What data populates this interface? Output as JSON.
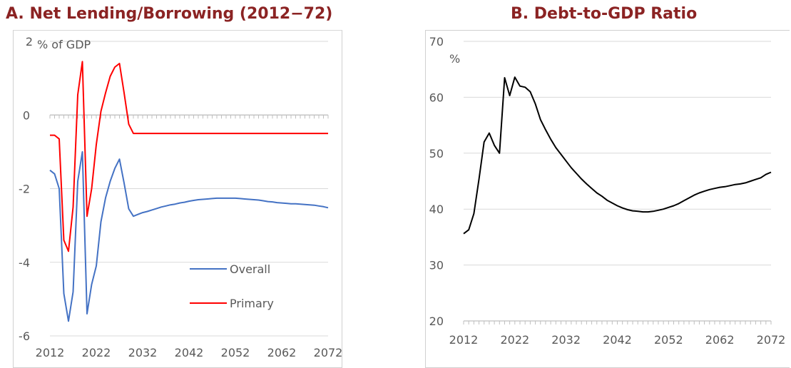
{
  "titles": {
    "a": "A. Net Lending/Borrowing (2012−72)",
    "b": "B. Debt-to-GDP Ratio"
  },
  "colors": {
    "title": "#8B2323",
    "overall": "#4472C4",
    "primary": "#FF0000",
    "debt": "#000000",
    "grid": "#d9d9d9",
    "axis": "#bfbfbf",
    "text": "#595959"
  },
  "chart_data": [
    {
      "type": "line",
      "title": "A. Net Lending/Borrowing (2012−72)",
      "ylabel": "% of GDP",
      "xlabel": "",
      "xlim": [
        2012,
        2072
      ],
      "ylim": [
        -6,
        2
      ],
      "x_ticks": [
        "2012",
        "2022",
        "2032",
        "2042",
        "2052",
        "2062",
        "2072"
      ],
      "y_ticks": [
        "2",
        "0",
        "-2",
        "-4",
        "-6"
      ],
      "grid": true,
      "legend_position": "lower-right",
      "series": [
        {
          "name": "Overall",
          "color": "#4472C4",
          "x": [
            2012,
            2013,
            2014,
            2015,
            2016,
            2017,
            2018,
            2019,
            2020,
            2021,
            2022,
            2023,
            2024,
            2025,
            2026,
            2027,
            2028,
            2029,
            2030,
            2031,
            2032,
            2033,
            2034,
            2035,
            2036,
            2037,
            2038,
            2039,
            2040,
            2041,
            2042,
            2043,
            2044,
            2045,
            2046,
            2047,
            2048,
            2049,
            2050,
            2051,
            2052,
            2053,
            2054,
            2055,
            2056,
            2057,
            2058,
            2059,
            2060,
            2061,
            2062,
            2063,
            2064,
            2065,
            2066,
            2067,
            2068,
            2069,
            2070,
            2071,
            2072
          ],
          "values": [
            -1.5,
            -1.6,
            -2.0,
            -4.85,
            -5.6,
            -4.8,
            -1.8,
            -1.0,
            -5.4,
            -4.6,
            -4.1,
            -2.9,
            -2.25,
            -1.8,
            -1.45,
            -1.2,
            -1.85,
            -2.55,
            -2.75,
            -2.7,
            -2.65,
            -2.62,
            -2.58,
            -2.54,
            -2.5,
            -2.47,
            -2.44,
            -2.42,
            -2.39,
            -2.37,
            -2.34,
            -2.32,
            -2.3,
            -2.29,
            -2.28,
            -2.27,
            -2.26,
            -2.26,
            -2.26,
            -2.26,
            -2.26,
            -2.27,
            -2.28,
            -2.29,
            -2.3,
            -2.31,
            -2.33,
            -2.35,
            -2.36,
            -2.38,
            -2.39,
            -2.4,
            -2.41,
            -2.41,
            -2.42,
            -2.43,
            -2.44,
            -2.45,
            -2.47,
            -2.49,
            -2.52
          ]
        },
        {
          "name": "Primary",
          "color": "#FF0000",
          "x": [
            2012,
            2013,
            2014,
            2015,
            2016,
            2017,
            2018,
            2019,
            2020,
            2021,
            2022,
            2023,
            2024,
            2025,
            2026,
            2027,
            2028,
            2029,
            2030,
            2031,
            2032,
            2033,
            2034,
            2035,
            2036,
            2037,
            2038,
            2039,
            2040,
            2041,
            2042,
            2043,
            2044,
            2045,
            2046,
            2047,
            2048,
            2049,
            2050,
            2051,
            2052,
            2053,
            2054,
            2055,
            2056,
            2057,
            2058,
            2059,
            2060,
            2061,
            2062,
            2063,
            2064,
            2065,
            2066,
            2067,
            2068,
            2069,
            2070,
            2071,
            2072
          ],
          "values": [
            -0.55,
            -0.55,
            -0.65,
            -3.4,
            -3.7,
            -2.5,
            0.55,
            1.45,
            -2.75,
            -2.0,
            -0.8,
            0.1,
            0.6,
            1.05,
            1.3,
            1.4,
            0.6,
            -0.25,
            -0.5,
            -0.5,
            -0.5,
            -0.5,
            -0.5,
            -0.5,
            -0.5,
            -0.5,
            -0.5,
            -0.5,
            -0.5,
            -0.5,
            -0.5,
            -0.5,
            -0.5,
            -0.5,
            -0.5,
            -0.5,
            -0.5,
            -0.5,
            -0.5,
            -0.5,
            -0.5,
            -0.5,
            -0.5,
            -0.5,
            -0.5,
            -0.5,
            -0.5,
            -0.5,
            -0.5,
            -0.5,
            -0.5,
            -0.5,
            -0.5,
            -0.5,
            -0.5,
            -0.5,
            -0.5,
            -0.5,
            -0.5,
            -0.5,
            -0.5
          ]
        }
      ]
    },
    {
      "type": "line",
      "title": "B. Debt-to-GDP Ratio",
      "ylabel": "%",
      "xlabel": "",
      "xlim": [
        2012,
        2072
      ],
      "ylim": [
        20,
        70
      ],
      "x_ticks": [
        "2012",
        "2022",
        "2032",
        "2042",
        "2052",
        "2062",
        "2072"
      ],
      "y_ticks": [
        "70",
        "60",
        "50",
        "40",
        "30",
        "20"
      ],
      "grid": true,
      "series": [
        {
          "color": "#000000",
          "x": [
            2012,
            2013,
            2014,
            2015,
            2016,
            2017,
            2018,
            2019,
            2020,
            2021,
            2022,
            2023,
            2024,
            2025,
            2026,
            2027,
            2028,
            2029,
            2030,
            2031,
            2032,
            2033,
            2034,
            2035,
            2036,
            2037,
            2038,
            2039,
            2040,
            2041,
            2042,
            2043,
            2044,
            2045,
            2046,
            2047,
            2048,
            2049,
            2050,
            2051,
            2052,
            2053,
            2054,
            2055,
            2056,
            2057,
            2058,
            2059,
            2060,
            2061,
            2062,
            2063,
            2064,
            2065,
            2066,
            2067,
            2068,
            2069,
            2070,
            2071,
            2072
          ],
          "values": [
            35.6,
            36.3,
            39.2,
            45.3,
            52.0,
            53.6,
            51.4,
            50.0,
            63.5,
            60.3,
            63.6,
            62.0,
            61.8,
            61.0,
            58.8,
            56.0,
            54.2,
            52.5,
            51.0,
            49.8,
            48.6,
            47.4,
            46.4,
            45.4,
            44.5,
            43.7,
            42.9,
            42.3,
            41.6,
            41.1,
            40.6,
            40.2,
            39.9,
            39.7,
            39.6,
            39.5,
            39.5,
            39.6,
            39.8,
            40.0,
            40.3,
            40.6,
            41.0,
            41.5,
            42.0,
            42.5,
            42.9,
            43.2,
            43.5,
            43.7,
            43.9,
            44.0,
            44.2,
            44.4,
            44.5,
            44.7,
            45.0,
            45.3,
            45.6,
            46.2,
            46.6
          ]
        }
      ]
    }
  ]
}
